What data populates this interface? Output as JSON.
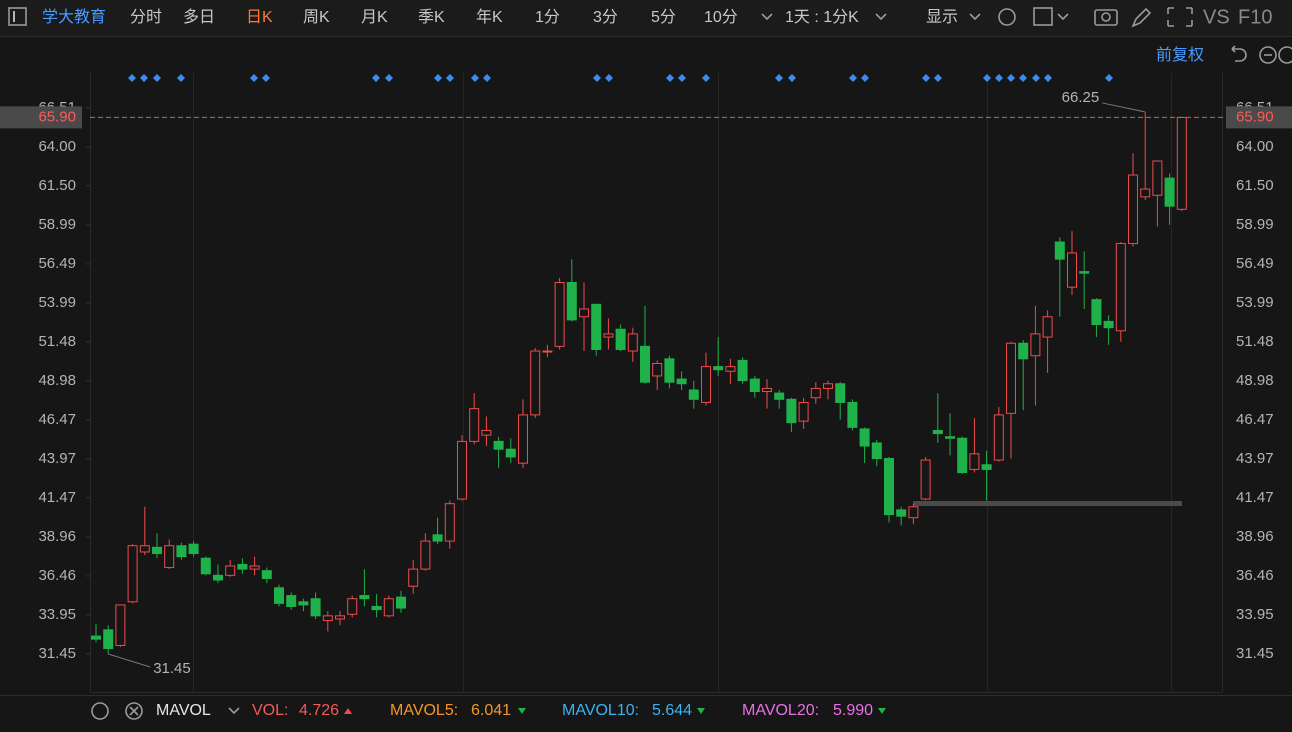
{
  "toolbar": {
    "stock": "学大教育",
    "periods": [
      "分时",
      "多日",
      "日K",
      "周K",
      "月K",
      "季K",
      "年K",
      "1分",
      "3分",
      "5分",
      "10分"
    ],
    "active": 2,
    "interval": "1天 : 1分K",
    "display": "显示",
    "vs": "VS",
    "f10": "F10"
  },
  "adjust": "前复权",
  "chart_data": {
    "type": "candlestick",
    "up_color": "#f04a4a",
    "down_color": "#1fb24a",
    "open": [
      32.6,
      33.0,
      32.0,
      34.8,
      38.0,
      38.3,
      37.0,
      38.4,
      38.5,
      37.6,
      36.5,
      36.5,
      37.2,
      36.9,
      36.8,
      35.7,
      35.2,
      34.8,
      35.0,
      33.6,
      33.7,
      34.0,
      35.2,
      34.5,
      33.9,
      35.1,
      35.8,
      36.9,
      39.1,
      38.7,
      41.4,
      45.1,
      45.5,
      45.1,
      44.6,
      43.7,
      46.8,
      50.9,
      51.2,
      55.3,
      53.1,
      53.9,
      51.8,
      52.3,
      50.9,
      51.2,
      49.3,
      50.4,
      49.1,
      48.4,
      47.6,
      49.9,
      49.6,
      50.3,
      49.1,
      48.3,
      48.2,
      47.8,
      46.4,
      47.9,
      48.5,
      48.8,
      47.6,
      45.9,
      45.0,
      44.0,
      40.7,
      40.2,
      41.4,
      45.8,
      45.4,
      45.3,
      43.3,
      43.6,
      43.9,
      46.9,
      51.4,
      50.6,
      51.8,
      57.9,
      55.0,
      56.0,
      54.2,
      52.8,
      52.2,
      57.8,
      60.8,
      60.9,
      62.0,
      60.0
    ],
    "high": [
      33.4,
      33.3,
      34.6,
      38.5,
      40.9,
      39.2,
      38.8,
      38.6,
      38.7,
      37.7,
      37.2,
      37.5,
      37.6,
      37.7,
      37.0,
      35.9,
      35.4,
      35.0,
      35.4,
      34.2,
      34.2,
      35.2,
      36.9,
      35.3,
      35.2,
      35.5,
      37.5,
      39.2,
      40.2,
      41.3,
      45.5,
      48.2,
      46.7,
      45.4,
      45.3,
      47.8,
      51.1,
      51.3,
      55.6,
      56.8,
      55.3,
      53.9,
      53.0,
      52.6,
      52.4,
      53.8,
      50.3,
      50.6,
      49.6,
      49.0,
      50.8,
      51.8,
      50.4,
      50.5,
      49.3,
      49.1,
      48.4,
      47.9,
      47.9,
      48.9,
      49.0,
      48.9,
      47.8,
      46.0,
      45.2,
      44.1,
      40.9,
      41.1,
      44.1,
      48.2,
      46.9,
      45.4,
      46.6,
      44.5,
      47.3,
      51.5,
      51.6,
      53.8,
      53.5,
      58.2,
      58.6,
      57.3,
      54.3,
      53.2,
      57.9,
      63.6,
      66.25,
      63.1,
      62.3,
      65.9
    ],
    "low": [
      32.2,
      31.45,
      31.9,
      34.7,
      37.8,
      37.6,
      36.9,
      37.5,
      37.7,
      36.5,
      36.0,
      36.4,
      36.6,
      36.5,
      36.0,
      34.5,
      34.3,
      34.2,
      33.7,
      32.9,
      33.3,
      33.8,
      34.5,
      33.8,
      33.8,
      34.1,
      35.3,
      36.8,
      38.5,
      38.2,
      41.3,
      44.9,
      44.8,
      43.4,
      43.7,
      43.4,
      46.6,
      50.5,
      51.0,
      52.8,
      50.9,
      50.6,
      51.0,
      50.9,
      50.2,
      48.8,
      48.4,
      48.5,
      48.4,
      47.2,
      47.4,
      49.3,
      48.8,
      48.8,
      47.9,
      47.2,
      47.2,
      45.7,
      45.9,
      47.5,
      47.8,
      46.5,
      45.8,
      43.7,
      43.5,
      39.9,
      39.7,
      39.8,
      41.3,
      45.0,
      44.2,
      43.0,
      43.1,
      41.3,
      43.8,
      44.0,
      47.1,
      47.4,
      49.5,
      53.1,
      54.5,
      53.6,
      51.8,
      51.3,
      51.5,
      57.6,
      60.6,
      58.9,
      59.0,
      59.9
    ],
    "close": [
      32.4,
      31.8,
      34.6,
      38.4,
      38.4,
      37.9,
      38.4,
      37.7,
      37.9,
      36.6,
      36.2,
      37.1,
      36.9,
      37.1,
      36.3,
      34.7,
      34.5,
      34.6,
      33.9,
      33.9,
      33.9,
      35.0,
      35.0,
      34.3,
      35.0,
      34.4,
      36.9,
      38.7,
      38.7,
      41.1,
      45.1,
      47.2,
      45.8,
      44.6,
      44.1,
      46.8,
      50.9,
      50.9,
      55.3,
      52.9,
      53.6,
      51.0,
      52.0,
      51.0,
      52.0,
      48.9,
      50.1,
      48.9,
      48.8,
      47.8,
      49.9,
      49.7,
      49.9,
      49.0,
      48.3,
      48.5,
      47.8,
      46.3,
      47.6,
      48.5,
      48.8,
      47.6,
      46.0,
      44.8,
      44.0,
      40.4,
      40.3,
      40.9,
      43.9,
      45.6,
      45.3,
      43.1,
      44.3,
      43.3,
      46.8,
      51.4,
      50.4,
      52.0,
      53.1,
      56.8,
      57.2,
      55.9,
      52.6,
      52.4,
      57.8,
      62.2,
      61.3,
      63.1,
      60.2,
      65.9
    ],
    "ylim": [
      29.01,
      68.75
    ],
    "yticks": [
      31.45,
      33.95,
      36.46,
      38.96,
      41.47,
      43.97,
      46.47,
      48.98,
      51.48,
      53.99,
      56.49,
      58.99,
      {
        "value": 61.5,
        "label": "61.50"
      },
      {
        "value": 64,
        "label": "64.00"
      },
      66.51
    ],
    "last_price": {
      "value": 65.9,
      "label": "65.90"
    },
    "annotations": {
      "high": 66.25,
      "low": 31.45
    }
  },
  "indicator": {
    "name": "MAVOL",
    "items": [
      {
        "label": "VOL:",
        "value": "4.726",
        "color": "#f45a5a",
        "trend": "up"
      },
      {
        "label": "MAVOL5:",
        "value": "6.041",
        "color": "#f5962a",
        "trend": "down"
      },
      {
        "label": "MAVOL10:",
        "value": "5.644",
        "color": "#3cb4f0",
        "trend": "down"
      },
      {
        "label": "MAVOL20:",
        "value": "5.990",
        "color": "#e870e8",
        "trend": "down"
      }
    ]
  }
}
